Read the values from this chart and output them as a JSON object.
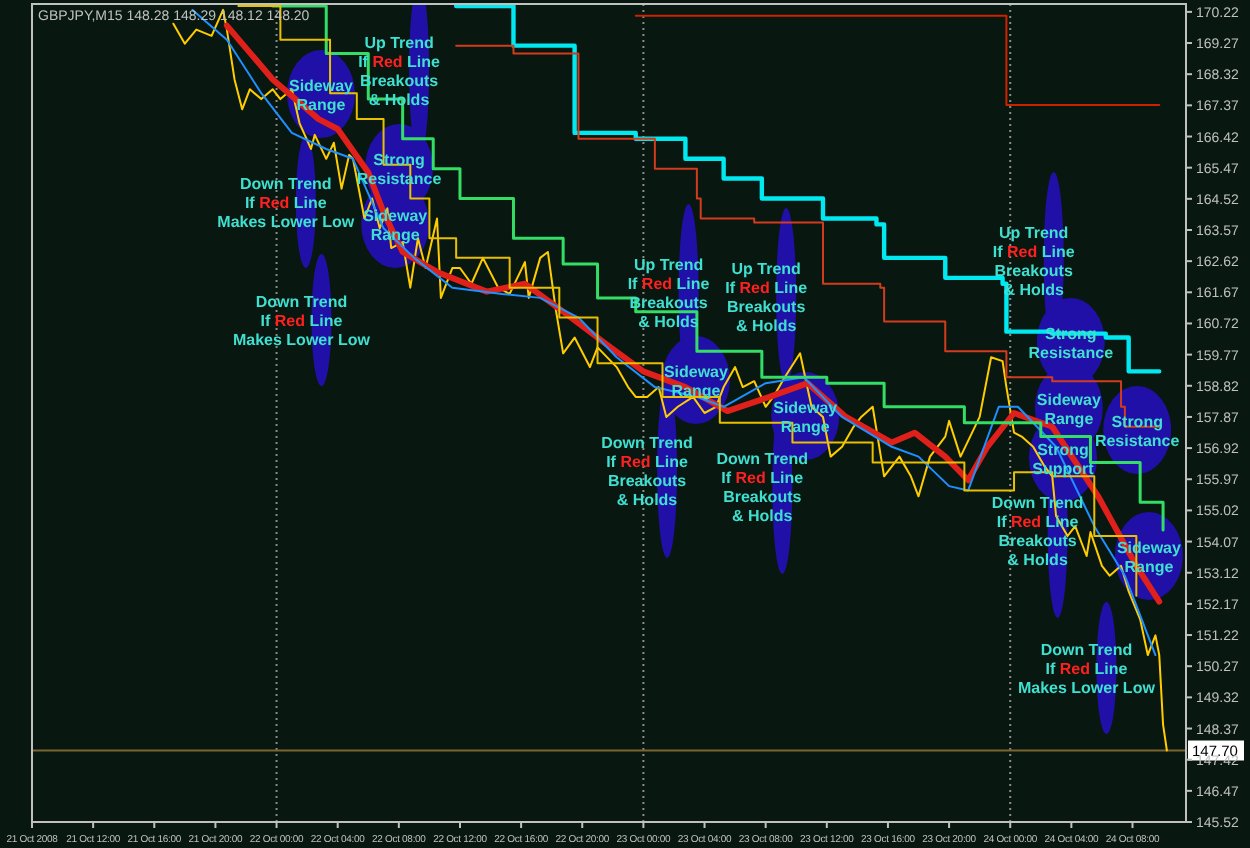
{
  "chart_data": {
    "type": "line",
    "title": "GBPJPY,M15  148.28 148.29 148.12 148.20",
    "xlim": [
      "2008-10-21T08:00",
      "2008-10-24T11:30"
    ],
    "ylim": [
      145.52,
      170.46
    ],
    "xticks": [
      {
        "value": "2008-10-21T08:00",
        "label": "21 Oct 2008"
      },
      {
        "value": "2008-10-21T12:00",
        "label": "21 Oct 12:00"
      },
      {
        "value": "2008-10-21T16:00",
        "label": "21 Oct 16:00"
      },
      {
        "value": "2008-10-21T20:00",
        "label": "21 Oct 20:00"
      },
      {
        "value": "2008-10-22T00:00",
        "label": "22 Oct 00:00"
      },
      {
        "value": "2008-10-22T04:00",
        "label": "22 Oct 04:00"
      },
      {
        "value": "2008-10-22T08:00",
        "label": "22 Oct 08:00"
      },
      {
        "value": "2008-10-22T12:00",
        "label": "22 Oct 12:00"
      },
      {
        "value": "2008-10-22T16:00",
        "label": "22 Oct 16:00"
      },
      {
        "value": "2008-10-22T20:00",
        "label": "22 Oct 20:00"
      },
      {
        "value": "2008-10-23T00:00",
        "label": "23 Oct 00:00"
      },
      {
        "value": "2008-10-23T04:00",
        "label": "23 Oct 04:00"
      },
      {
        "value": "2008-10-23T08:00",
        "label": "23 Oct 08:00"
      },
      {
        "value": "2008-10-23T12:00",
        "label": "23 Oct 12:00"
      },
      {
        "value": "2008-10-23T16:00",
        "label": "23 Oct 16:00"
      },
      {
        "value": "2008-10-23T20:00",
        "label": "23 Oct 20:00"
      },
      {
        "value": "2008-10-24T00:00",
        "label": "24 Oct 00:00"
      },
      {
        "value": "2008-10-24T04:00",
        "label": "24 Oct 04:00"
      },
      {
        "value": "2008-10-24T08:00",
        "label": "24 Oct 08:00"
      }
    ],
    "yticks": [
      145.52,
      146.47,
      147.42,
      148.37,
      149.32,
      150.27,
      151.22,
      152.17,
      153.12,
      154.07,
      155.02,
      155.97,
      156.92,
      157.87,
      158.82,
      159.77,
      160.72,
      161.67,
      162.62,
      163.57,
      164.52,
      165.47,
      166.42,
      167.37,
      168.32,
      169.27,
      170.22
    ],
    "grid": false,
    "marker": "none",
    "line_style": "solid",
    "series": [
      {
        "color": "#ffcc00",
        "x": [
          "2008-10-21T17:15",
          "2008-10-21T18:00",
          "2008-10-21T18:45",
          "2008-10-21T19:45",
          "2008-10-21T20:30",
          "2008-10-21T20:45",
          "2008-10-21T21:15",
          "2008-10-21T21:45",
          "2008-10-21T22:15",
          "2008-10-21T23:00",
          "2008-10-21T23:45",
          "2008-10-22T00:15",
          "2008-10-22T01:00",
          "2008-10-22T01:30",
          "2008-10-22T02:15",
          "2008-10-22T02:30",
          "2008-10-22T03:15",
          "2008-10-22T03:45",
          "2008-10-22T04:15",
          "2008-10-22T04:45",
          "2008-10-22T05:00",
          "2008-10-22T05:45",
          "2008-10-22T06:15",
          "2008-10-22T06:45",
          "2008-10-22T07:15",
          "2008-10-22T07:30",
          "2008-10-22T08:15",
          "2008-10-22T08:45",
          "2008-10-22T09:15",
          "2008-10-22T09:45",
          "2008-10-22T10:30",
          "2008-10-22T10:45",
          "2008-10-22T11:30",
          "2008-10-22T12:00",
          "2008-10-22T12:45",
          "2008-10-22T13:30",
          "2008-10-22T14:30",
          "2008-10-22T15:15",
          "2008-10-22T16:15",
          "2008-10-22T16:30",
          "2008-10-22T17:15",
          "2008-10-22T17:45",
          "2008-10-22T18:15",
          "2008-10-22T18:45",
          "2008-10-22T19:30",
          "2008-10-22T20:30",
          "2008-10-22T21:00",
          "2008-10-22T22:15",
          "2008-10-22T23:00",
          "2008-10-22T23:30",
          "2008-10-23T00:15",
          "2008-10-23T01:00",
          "2008-10-23T01:30",
          "2008-10-23T02:15",
          "2008-10-23T03:15",
          "2008-10-23T04:00",
          "2008-10-23T04:45",
          "2008-10-23T05:15",
          "2008-10-23T06:00",
          "2008-10-23T06:30",
          "2008-10-23T07:15",
          "2008-10-23T08:00",
          "2008-10-23T08:30",
          "2008-10-23T09:15",
          "2008-10-23T10:15",
          "2008-10-23T11:00",
          "2008-10-23T11:45",
          "2008-10-23T12:15",
          "2008-10-23T13:00",
          "2008-10-23T13:45",
          "2008-10-23T14:15",
          "2008-10-23T15:00",
          "2008-10-23T15:45",
          "2008-10-23T16:45",
          "2008-10-23T17:30",
          "2008-10-23T18:00",
          "2008-10-23T18:45",
          "2008-10-23T19:45",
          "2008-10-23T20:00",
          "2008-10-23T20:45",
          "2008-10-23T22:00",
          "2008-10-23T22:15",
          "2008-10-23T22:45",
          "2008-10-23T23:30",
          "2008-10-23T23:45",
          "2008-10-24T00:15",
          "2008-10-24T00:45",
          "2008-10-24T01:30",
          "2008-10-24T02:15",
          "2008-10-24T02:45",
          "2008-10-24T03:00",
          "2008-10-24T03:45",
          "2008-10-24T04:15",
          "2008-10-24T05:00",
          "2008-10-24T05:15",
          "2008-10-24T06:00",
          "2008-10-24T06:30",
          "2008-10-24T07:15",
          "2008-10-24T07:45",
          "2008-10-24T08:30",
          "2008-10-24T09:00",
          "2008-10-24T09:30",
          "2008-10-24T09:45",
          "2008-10-24T10:00",
          "2008-10-24T10:15"
        ],
        "values": [
          169.86,
          169.25,
          169.68,
          169.49,
          170.28,
          169.68,
          168.16,
          167.25,
          167.86,
          167.56,
          167.86,
          167.56,
          167.86,
          166.83,
          166.04,
          166.47,
          165.74,
          166.23,
          164.83,
          165.86,
          165.74,
          163.92,
          164.53,
          163.62,
          164.23,
          163.02,
          163.2,
          161.81,
          163.32,
          162.41,
          163.92,
          161.5,
          162.41,
          162.41,
          161.93,
          162.72,
          161.81,
          161.62,
          162.59,
          161.5,
          162.72,
          162.9,
          161.2,
          159.81,
          160.29,
          159.39,
          159.99,
          159.39,
          158.78,
          158.48,
          158.48,
          158.78,
          157.87,
          158.18,
          158.48,
          157.99,
          158.18,
          158.78,
          159.39,
          158.78,
          158.96,
          158.18,
          158.48,
          159.08,
          159.81,
          158.18,
          157.87,
          156.66,
          156.96,
          157.57,
          157.87,
          158.18,
          156.06,
          156.66,
          156.06,
          155.45,
          156.66,
          157.27,
          157.75,
          156.66,
          157.87,
          158.48,
          159.69,
          159.57,
          158.78,
          157.39,
          157.27,
          156.96,
          156.36,
          156.06,
          154.85,
          154.24,
          154.54,
          153.63,
          154.36,
          153.33,
          153.03,
          153.33,
          152.55,
          151.7,
          150.61,
          151.21,
          150.61,
          148.49,
          147.7
        ]
      },
      {
        "color": "#e0201a",
        "x": [
          "2008-10-21T20:45",
          "2008-10-21T23:45",
          "2008-10-22T02:45",
          "2008-10-22T04:00",
          "2008-10-22T06:00",
          "2008-10-22T07:00",
          "2008-10-22T08:15",
          "2008-10-22T10:30",
          "2008-10-22T13:45",
          "2008-10-22T16:15",
          "2008-10-22T18:45",
          "2008-10-22T21:30",
          "2008-10-23T00:00",
          "2008-10-23T02:45",
          "2008-10-23T05:30",
          "2008-10-23T08:15",
          "2008-10-23T10:45",
          "2008-10-23T13:15",
          "2008-10-23T16:15",
          "2008-10-23T17:45",
          "2008-10-23T19:45",
          "2008-10-23T21:15",
          "2008-10-23T22:30",
          "2008-10-24T00:15",
          "2008-10-24T02:45",
          "2008-10-24T05:45",
          "2008-10-24T08:15",
          "2008-10-24T09:45"
        ],
        "values": [
          169.8,
          168.16,
          166.95,
          166.65,
          165.32,
          164.11,
          162.9,
          162.29,
          161.69,
          161.93,
          161.08,
          160.11,
          159.26,
          158.78,
          158.05,
          158.48,
          158.9,
          157.87,
          157.09,
          157.39,
          156.66,
          155.94,
          156.96,
          157.99,
          157.57,
          155.45,
          153.33,
          152.24
        ]
      },
      {
        "color": "#1e90ff",
        "x": [
          "2008-10-21T18:30",
          "2008-10-21T20:45",
          "2008-10-21T23:00",
          "2008-10-22T01:00",
          "2008-10-22T03:15",
          "2008-10-22T05:00",
          "2008-10-22T07:00",
          "2008-10-22T09:00",
          "2008-10-22T11:30",
          "2008-10-22T14:45",
          "2008-10-22T17:15",
          "2008-10-22T19:45",
          "2008-10-22T22:15",
          "2008-10-23T00:45",
          "2008-10-23T03:30",
          "2008-10-23T05:15",
          "2008-10-23T08:00",
          "2008-10-23T10:30",
          "2008-10-23T13:00",
          "2008-10-23T16:15",
          "2008-10-23T18:00",
          "2008-10-23T20:00",
          "2008-10-23T21:15",
          "2008-10-23T23:15",
          "2008-10-24T00:30",
          "2008-10-24T03:00",
          "2008-10-24T05:30",
          "2008-10-24T07:30",
          "2008-10-24T09:30"
        ],
        "values": [
          170.28,
          169.37,
          167.74,
          166.53,
          166.04,
          165.74,
          163.62,
          162.72,
          161.81,
          161.62,
          161.5,
          160.9,
          159.69,
          158.78,
          158.48,
          158.18,
          158.9,
          159.08,
          157.87,
          156.96,
          156.66,
          155.76,
          155.63,
          158.18,
          158.18,
          156.96,
          154.54,
          153.03,
          150.61
        ]
      },
      {
        "type": "step",
        "color": "#33dd66",
        "x": [
          "2008-10-21T23:45",
          "2008-10-22T03:15",
          "2008-10-22T06:00",
          "2008-10-22T08:15",
          "2008-10-22T10:15",
          "2008-10-22T12:00",
          "2008-10-22T15:30",
          "2008-10-22T18:45",
          "2008-10-22T21:00",
          "2008-10-22T23:30",
          "2008-10-23T03:30",
          "2008-10-23T07:45",
          "2008-10-23T12:00",
          "2008-10-23T15:45",
          "2008-10-23T21:00",
          "2008-10-24T02:00",
          "2008-10-24T05:15",
          "2008-10-24T08:30",
          "2008-10-24T10:00"
        ],
        "values": [
          170.4,
          168.95,
          167.56,
          166.35,
          165.44,
          164.53,
          163.32,
          162.53,
          161.5,
          161.08,
          159.87,
          159.08,
          158.9,
          158.18,
          157.69,
          157.27,
          156.48,
          155.27,
          154.42
        ]
      },
      {
        "type": "step",
        "color": "#e8c000",
        "x": [
          "2008-10-21T21:30",
          "2008-10-22T00:15",
          "2008-10-22T03:30",
          "2008-10-22T05:15",
          "2008-10-22T07:00",
          "2008-10-22T08:45",
          "2008-10-22T10:00",
          "2008-10-22T11:45",
          "2008-10-22T15:15",
          "2008-10-22T18:30",
          "2008-10-22T21:00",
          "2008-10-23T01:15",
          "2008-10-23T05:00",
          "2008-10-23T09:45",
          "2008-10-23T15:00",
          "2008-10-23T21:00",
          "2008-10-24T00:15",
          "2008-10-24T02:45",
          "2008-10-24T05:30",
          "2008-10-24T08:15"
        ],
        "values": [
          170.4,
          169.37,
          167.74,
          166.95,
          165.56,
          164.53,
          163.32,
          162.72,
          161.81,
          160.9,
          159.51,
          158.48,
          157.69,
          157.09,
          156.48,
          155.63,
          156.18,
          156.06,
          154.24,
          152.42
        ]
      },
      {
        "type": "step",
        "color": "#00e8f0",
        "x": [
          "2008-10-22T11:45",
          "2008-10-22T15:30",
          "2008-10-22T19:30",
          "2008-10-22T19:30",
          "2008-10-22T23:30",
          "2008-10-23T02:45",
          "2008-10-23T05:15",
          "2008-10-23T07:45",
          "2008-10-23T11:30",
          "2008-10-23T11:45",
          "2008-10-23T15:15",
          "2008-10-23T15:45",
          "2008-10-23T19:45",
          "2008-10-23T23:30",
          "2008-10-23T23:45",
          "2008-10-24T02:45",
          "2008-10-24T06:15",
          "2008-10-24T07:45",
          "2008-10-24T09:45"
        ],
        "values": [
          170.4,
          169.19,
          168.77,
          166.53,
          166.35,
          165.74,
          165.14,
          164.53,
          164.53,
          163.92,
          163.74,
          162.72,
          162.11,
          161.93,
          160.47,
          160.41,
          160.29,
          159.26,
          159.26
        ]
      },
      {
        "type": "step",
        "color": "#cc2200",
        "x": [
          "2008-10-22T23:30",
          "2008-10-23T23:30",
          "2008-10-23T23:45",
          "2008-10-24T09:45"
        ],
        "values": [
          170.1,
          170.1,
          167.38,
          167.38
        ]
      },
      {
        "type": "step",
        "color": "#d23c1e",
        "x": [
          "2008-10-22T11:45",
          "2008-10-22T15:30",
          "2008-10-22T19:45",
          "2008-10-22T19:45",
          "2008-10-22T23:30",
          "2008-10-23T00:45",
          "2008-10-23T03:30",
          "2008-10-23T03:45",
          "2008-10-23T07:15",
          "2008-10-23T11:45",
          "2008-10-23T15:30",
          "2008-10-23T15:45",
          "2008-10-23T19:45",
          "2008-10-23T23:45",
          "2008-10-24T02:45",
          "2008-10-24T07:15",
          "2008-10-24T07:30",
          "2008-10-24T09:45"
        ],
        "values": [
          169.19,
          168.95,
          167.98,
          166.35,
          166.35,
          165.44,
          164.53,
          163.92,
          163.8,
          161.93,
          161.81,
          160.78,
          159.87,
          159.08,
          158.96,
          158.18,
          157.57,
          157.57
        ]
      }
    ],
    "ref_lines": [
      {
        "axis": "x",
        "value": "2008-10-22T00:00",
        "line_style": "dotted",
        "color": "#8c8c8c"
      },
      {
        "axis": "x",
        "value": "2008-10-23T00:00",
        "line_style": "dotted",
        "color": "#8c8c8c"
      },
      {
        "axis": "x",
        "value": "2008-10-24T00:00",
        "line_style": "dotted",
        "color": "#8c8c8c"
      },
      {
        "axis": "y",
        "value": 147.7,
        "label": "147.70",
        "line_style": "solid",
        "color": "#7a6530"
      }
    ],
    "annotations": [
      "Up Trend\nIf Red Line\nBreakouts\n& Holds",
      "Sideway\nRange",
      "Strong\nResistance",
      "Down Trend\nIf Red Line\nMakes Lower Low",
      "Sideway\nRange",
      "Down Trend\nIf Red Line\nMakes Lower Low",
      "Up Trend\nIf Red Line\nBreakouts\n& Holds",
      "Up Trend\nIf Red Line\nBreakouts\n& Holds",
      "Sideway\nRange",
      "Sideway\nRange",
      "Down Trend\nIf Red Line\nBreakouts\n& Holds",
      "Down Trend\nIf Red Line\nBreakouts\n& Holds",
      "Up Trend\nIf Red Line\nBreakouts\n& Holds",
      "Strong\nResistance",
      "Sideway\nRange",
      "Strong\nSupport",
      "Strong\nResistance",
      "Down Trend\nIf Red Line\nBreakouts\n& Holds",
      "Sideway\nRange",
      "Down Trend\nIf Red Line\nMakes Lower Low"
    ]
  }
}
